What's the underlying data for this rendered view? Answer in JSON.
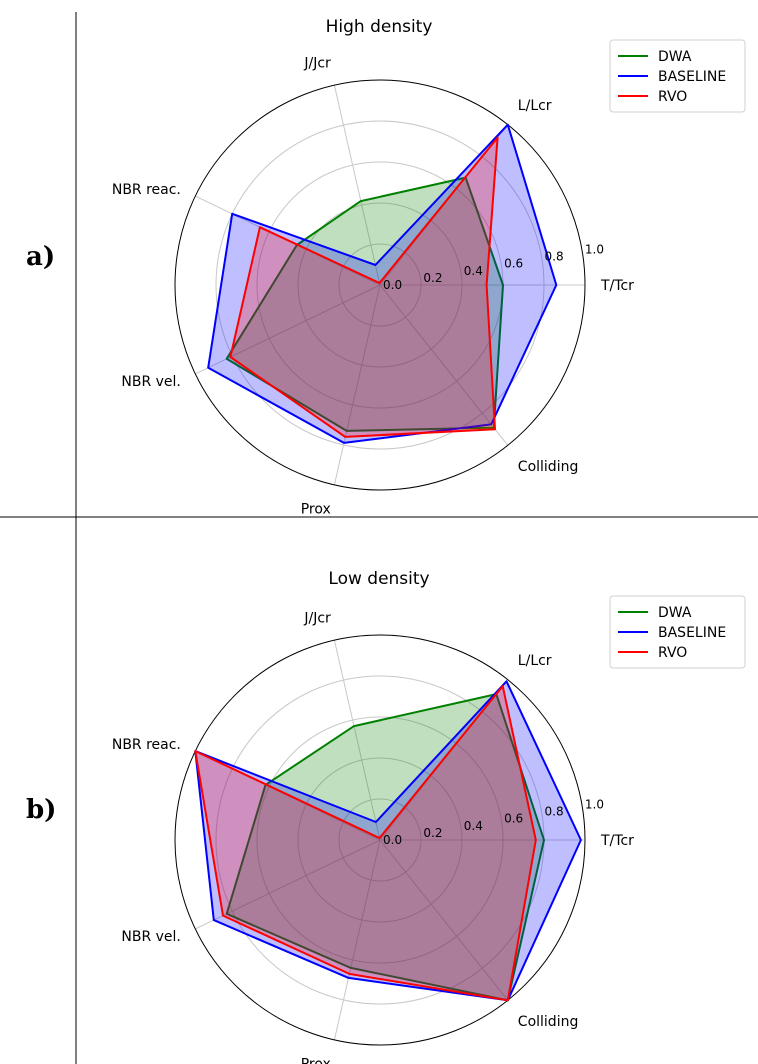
{
  "panels": [
    {
      "tag": "a)"
    },
    {
      "tag": "b)"
    }
  ],
  "chart_data": [
    {
      "type": "radar",
      "title": "High density",
      "axes": [
        "T/Tcr",
        "L/Lcr",
        "J/Jcr",
        "NBR reac.",
        "NBR vel.",
        "Prox",
        "Colliding"
      ],
      "radial_ticks": [
        "0.0",
        "0.2",
        "0.4",
        "0.6",
        "0.8",
        "1.0"
      ],
      "rlim": [
        0,
        1
      ],
      "grid": true,
      "legend_position": "top-right",
      "series": [
        {
          "name": "DWA",
          "color": "#008000",
          "values": [
            0.6,
            0.67,
            0.42,
            0.45,
            0.83,
            0.73,
            0.89
          ]
        },
        {
          "name": "BASELINE",
          "color": "#0000ff",
          "values": [
            0.86,
            1.0,
            0.1,
            0.8,
            0.93,
            0.79,
            0.87
          ]
        },
        {
          "name": "RVO",
          "color": "#ff0000",
          "values": [
            0.52,
            0.92,
            0.01,
            0.65,
            0.81,
            0.76,
            0.9
          ]
        }
      ]
    },
    {
      "type": "radar",
      "title": "Low density",
      "axes": [
        "T/Tcr",
        "L/Lcr",
        "J/Jcr",
        "NBR reac.",
        "NBR vel.",
        "Prox",
        "Colliding"
      ],
      "radial_ticks": [
        "0.0",
        "0.2",
        "0.4",
        "0.6",
        "0.8",
        "1.0"
      ],
      "rlim": [
        0,
        1
      ],
      "grid": true,
      "legend_position": "top-right",
      "series": [
        {
          "name": "DWA",
          "color": "#008000",
          "values": [
            0.8,
            0.91,
            0.57,
            0.62,
            0.83,
            0.64,
            1.0
          ]
        },
        {
          "name": "BASELINE",
          "color": "#0000ff",
          "values": [
            0.98,
            0.99,
            0.09,
            1.0,
            0.9,
            0.69,
            1.0
          ]
        },
        {
          "name": "RVO",
          "color": "#ff0000",
          "values": [
            0.76,
            0.96,
            0.01,
            1.0,
            0.85,
            0.67,
            1.0
          ]
        }
      ]
    }
  ]
}
